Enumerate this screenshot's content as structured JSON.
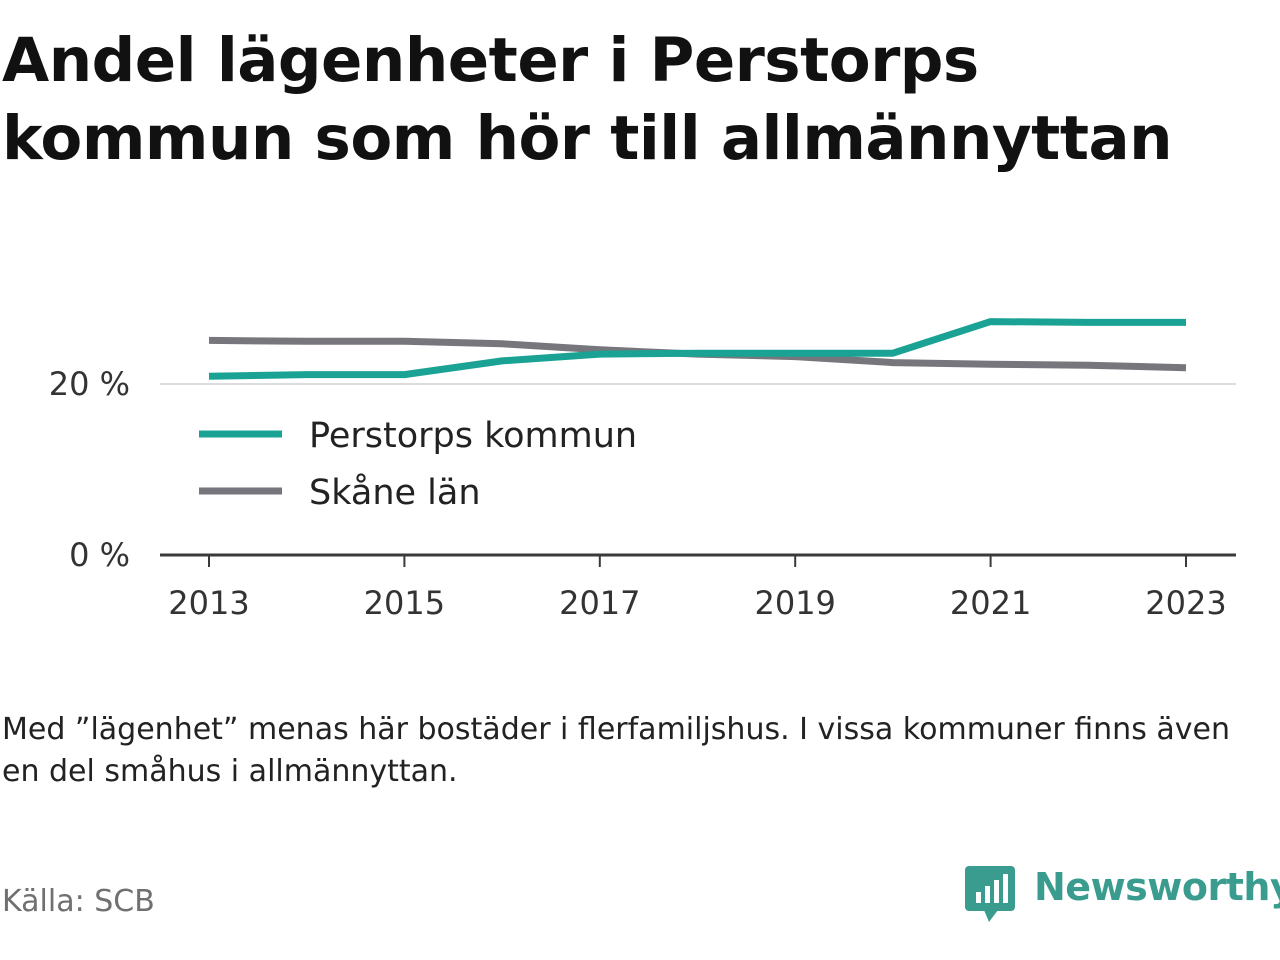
{
  "title_lines": [
    "Andel lägenheter i Perstorps",
    "kommun som hör till allmännyttan"
  ],
  "note": "Med ”lägenhet” menas här bostäder i flerfamiljshus. I vissa kommuner finns även en del småhus i allmännyttan.",
  "source": "Källa: SCB",
  "brand": {
    "name": "Newsworthy",
    "icon": "newsworthy-logo-icon",
    "color": "#3a9c8e"
  },
  "chart_data": {
    "type": "line",
    "title": "Andel lägenheter i Perstorps kommun som hör till allmännyttan",
    "xlabel": "",
    "ylabel": "",
    "x": [
      2013,
      2014,
      2015,
      2016,
      2017,
      2018,
      2019,
      2020,
      2021,
      2022,
      2023
    ],
    "xticks": [
      2013,
      2015,
      2017,
      2019,
      2021,
      2023
    ],
    "xtick_labels": [
      "2013",
      "2015",
      "2017",
      "2019",
      "2021",
      "2023"
    ],
    "yticks": [
      0,
      20
    ],
    "ytick_labels": [
      "0 %",
      "20 %"
    ],
    "ylim": [
      0,
      30
    ],
    "grid": "horizontal",
    "legend_position": "center-left",
    "series": [
      {
        "name": "Perstorps kommun",
        "color": "#1aa394",
        "values": [
          20.9,
          21.1,
          21.1,
          22.7,
          23.5,
          23.6,
          23.6,
          23.6,
          27.3,
          27.2,
          27.2
        ]
      },
      {
        "name": "Skåne län",
        "color": "#76767c",
        "values": [
          25.1,
          25.0,
          25.0,
          24.7,
          24.0,
          23.5,
          23.2,
          22.5,
          22.3,
          22.2,
          21.9
        ]
      }
    ]
  }
}
